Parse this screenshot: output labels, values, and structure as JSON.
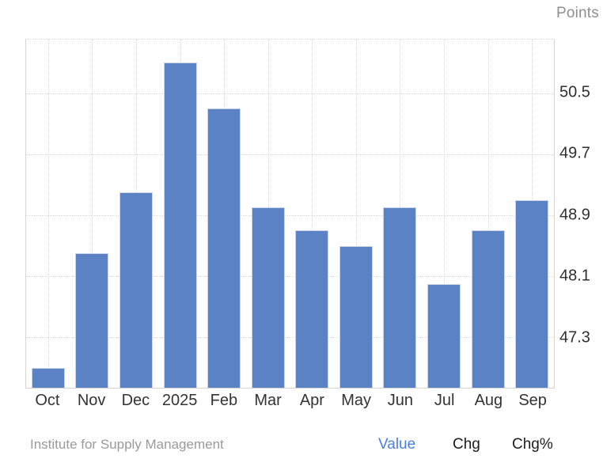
{
  "chart_data": {
    "type": "bar",
    "title": "",
    "categories": [
      "Oct",
      "Nov",
      "Dec",
      "2025",
      "Feb",
      "Mar",
      "Apr",
      "May",
      "Jun",
      "Jul",
      "Aug",
      "Sep"
    ],
    "values": [
      46.9,
      48.4,
      49.2,
      50.9,
      50.3,
      49.0,
      48.7,
      48.5,
      49.0,
      48.0,
      48.7,
      49.1
    ],
    "xlabel": "",
    "ylabel": "Points",
    "ylim": [
      46.64,
      51.2
    ],
    "yticks": [
      50.5,
      49.7,
      48.9,
      48.1,
      47.3
    ],
    "grid": "dotted",
    "legend_position": "none",
    "source": "Institute for Supply Management"
  },
  "footer": {
    "source": "Institute for Supply Management",
    "tabs": [
      {
        "label": "Value",
        "active": true
      },
      {
        "label": "Chg",
        "active": false
      },
      {
        "label": "Chg%",
        "active": false
      }
    ]
  },
  "colors": {
    "bar": "#5b82c4",
    "bar_border": "#c9d4ea",
    "grid": "#d9d9d9",
    "axis_border": "#d4d4d4",
    "tick_text": "#2f2f2f",
    "muted_text": "#9a9a9a",
    "accent_blue": "#4a80e8"
  }
}
